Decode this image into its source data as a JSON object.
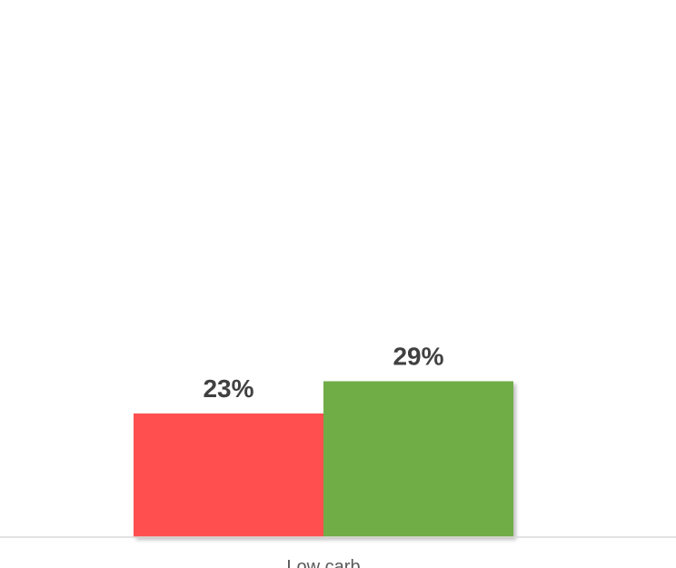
{
  "chart_data": {
    "type": "bar",
    "categories": [
      "Low carb"
    ],
    "series": [
      {
        "values": [
          23
        ],
        "color": "#FF5050",
        "value_label": "23%"
      },
      {
        "values": [
          29
        ],
        "color": "#70AD47",
        "value_label": "29%"
      }
    ],
    "ylim": [
      0,
      100
    ],
    "unit": "%",
    "grid": false,
    "legend": "none"
  }
}
